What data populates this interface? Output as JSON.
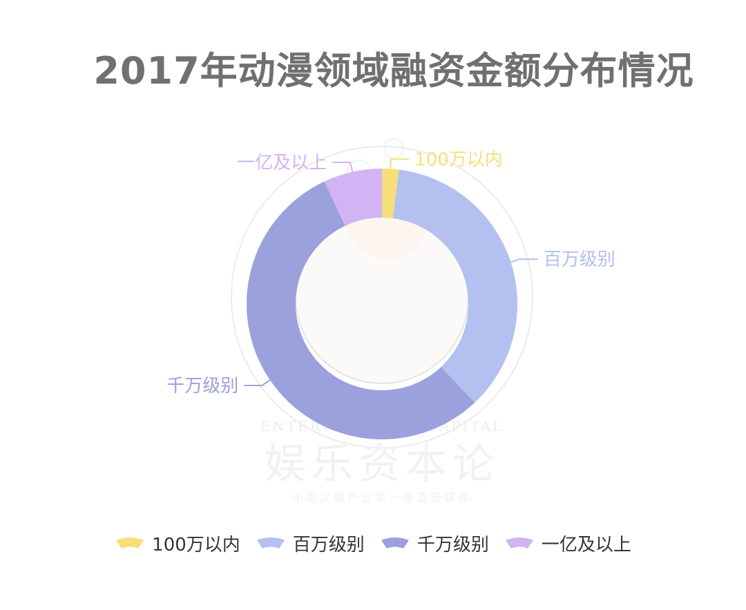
{
  "watermark": {
    "en": "ENTERTAINMENT CAPITAL",
    "cn": "娱乐资本论",
    "tagline": "中国文娱产业第一垂直新媒体"
  },
  "chart_data": {
    "type": "pie",
    "title": "2017年动漫领域融资金额分布情况",
    "categories": [
      "100万以内",
      "百万级别",
      "千万级别",
      "一亿及以上"
    ],
    "values": [
      2,
      36,
      55,
      7
    ],
    "colors": [
      "#f6df79",
      "#b3c0f0",
      "#9ba1dd",
      "#d2b4f4"
    ],
    "donut": true,
    "legend_position": "bottom"
  }
}
